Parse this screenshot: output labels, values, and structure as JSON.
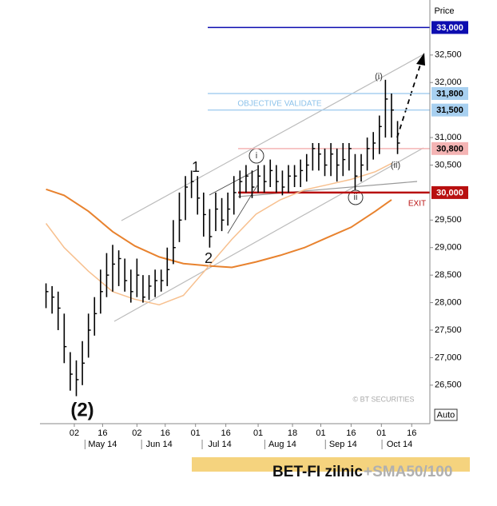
{
  "chart_data": {
    "type": "ohlc",
    "title": "BET-FI zilnic",
    "subtitle": "+SMA50/100",
    "y_axis_label": "Price",
    "scale_button": "Auto",
    "watermark": "© BT SECURITIES",
    "color": "#000000",
    "xlim": [
      105,
      298
    ],
    "ylim": [
      25800,
      33500
    ],
    "xticks": [
      {
        "value": 122,
        "label": "02"
      },
      {
        "value": 136,
        "label": "16"
      },
      {
        "value": 153,
        "label": "02"
      },
      {
        "value": 167,
        "label": "16"
      },
      {
        "value": 182,
        "label": "01"
      },
      {
        "value": 197,
        "label": "16"
      },
      {
        "value": 213,
        "label": "01"
      },
      {
        "value": 230,
        "label": "18"
      },
      {
        "value": 244,
        "label": "01"
      },
      {
        "value": 259,
        "label": "16"
      },
      {
        "value": 274,
        "label": "01"
      },
      {
        "value": 289,
        "label": "16"
      }
    ],
    "month_labels": [
      {
        "value": 136,
        "label": "May 14"
      },
      {
        "value": 164,
        "label": "Jun 14"
      },
      {
        "value": 194,
        "label": "Jul 14"
      },
      {
        "value": 225,
        "label": "Aug 14"
      },
      {
        "value": 255,
        "label": "Sep 14"
      },
      {
        "value": 283,
        "label": "Oct 14"
      }
    ],
    "yticks": [
      {
        "value": 26500,
        "label": "26,500"
      },
      {
        "value": 27000,
        "label": "27,000"
      },
      {
        "value": 27500,
        "label": "27,500"
      },
      {
        "value": 28000,
        "label": "28,000"
      },
      {
        "value": 28500,
        "label": "28,500"
      },
      {
        "value": 29000,
        "label": "29,000"
      },
      {
        "value": 29500,
        "label": "29,500"
      },
      {
        "value": 30500,
        "label": "30,500"
      },
      {
        "value": 31000,
        "label": "31,000"
      },
      {
        "value": 32000,
        "label": "32,000"
      },
      {
        "value": 32500,
        "label": "32,500"
      }
    ],
    "x": [
      108,
      111,
      114,
      117,
      120,
      123,
      126,
      129,
      132,
      135,
      138,
      141,
      144,
      147,
      150,
      153,
      156,
      159,
      162,
      165,
      168,
      171,
      174,
      177,
      180,
      183,
      186,
      189,
      192,
      195,
      198,
      201,
      204,
      207,
      210,
      213,
      216,
      219,
      222,
      225,
      228,
      231,
      234,
      237,
      240,
      243,
      246,
      249,
      252,
      255,
      258,
      261,
      264,
      267,
      270,
      273,
      276,
      279,
      282
    ],
    "high": [
      28350,
      28300,
      28200,
      27800,
      27100,
      26950,
      27300,
      27800,
      28100,
      28600,
      28900,
      29050,
      28950,
      28800,
      28600,
      28800,
      28500,
      28500,
      28600,
      28600,
      29000,
      29500,
      30000,
      30300,
      30400,
      30300,
      30000,
      29700,
      30000,
      29900,
      30000,
      30300,
      30400,
      30500,
      30400,
      30500,
      30500,
      30600,
      30500,
      30400,
      30500,
      30500,
      30600,
      30700,
      30900,
      30900,
      30800,
      30900,
      30800,
      30900,
      30900,
      30700,
      30700,
      31000,
      31100,
      31400,
      32050,
      31800,
      31300
    ],
    "low": [
      27900,
      27800,
      27500,
      26900,
      26400,
      26300,
      26500,
      27000,
      27400,
      27800,
      28100,
      28200,
      28300,
      28200,
      28000,
      28100,
      28000,
      28050,
      28100,
      28200,
      28300,
      28700,
      29100,
      29500,
      29900,
      29600,
      29200,
      29000,
      29300,
      29300,
      29400,
      29600,
      29900,
      30000,
      29900,
      30000,
      30000,
      30100,
      30000,
      29950,
      30000,
      30100,
      30100,
      30200,
      30400,
      30400,
      30300,
      30300,
      30200,
      30300,
      30400,
      30050,
      30200,
      30400,
      30600,
      30700,
      31000,
      31000,
      30700
    ],
    "close": [
      28200,
      28100,
      27900,
      27200,
      26700,
      26600,
      26900,
      27500,
      27800,
      28200,
      28500,
      28700,
      28800,
      28400,
      28200,
      28500,
      28100,
      28300,
      28400,
      28400,
      28600,
      29000,
      29500,
      30100,
      30200,
      29900,
      29600,
      29200,
      29700,
      29500,
      29700,
      30000,
      30200,
      30300,
      30100,
      30300,
      30200,
      30400,
      30200,
      30100,
      30300,
      30300,
      30400,
      30500,
      30800,
      30700,
      30500,
      30700,
      30500,
      30600,
      30800,
      30300,
      30500,
      30800,
      30900,
      31200,
      31700,
      31500,
      30900
    ],
    "overlays": [
      {
        "color": "#e8822e",
        "x": [
          108,
          117,
          129,
          141,
          152,
          164,
          176,
          188,
          200,
          212,
          224,
          236,
          247,
          259,
          271,
          279
        ],
        "values": [
          30060,
          29950,
          29660,
          29290,
          29030,
          28830,
          28710,
          28670,
          28640,
          28740,
          28860,
          29000,
          29180,
          29370,
          29660,
          29870
        ]
      },
      {
        "color": "#f7c08f",
        "x": [
          108,
          117,
          129,
          141,
          152,
          164,
          176,
          188,
          200,
          212,
          224,
          236,
          247,
          259,
          271,
          279
        ],
        "values": [
          29440,
          29000,
          28570,
          28200,
          28060,
          27960,
          28130,
          28640,
          29150,
          29610,
          29870,
          30050,
          30140,
          30240,
          30380,
          30530
        ]
      }
    ],
    "levels": [
      {
        "value": 33000,
        "label": "33,000",
        "color": "#0d0db0",
        "text_color": "#ffffff"
      },
      {
        "value": 31800,
        "label": "31,800",
        "color": "#a8d0f0",
        "text_color": "#000000"
      },
      {
        "value": 31500,
        "label": "31,500",
        "color": "#a8d0f0",
        "text_color": "#000000"
      },
      {
        "value": 30800,
        "label": "30,800",
        "color": "#f4b4b4",
        "text_color": "#000000"
      },
      {
        "value": 30000,
        "label": "30,000",
        "color": "#b80f0f",
        "text_color": "#ffffff"
      }
    ],
    "annotations": [
      "1",
      "2",
      "(2)",
      "(i)",
      "(ii)",
      "i",
      "ii",
      "OBJECTIVE VALIDATE",
      "EXIT"
    ]
  }
}
